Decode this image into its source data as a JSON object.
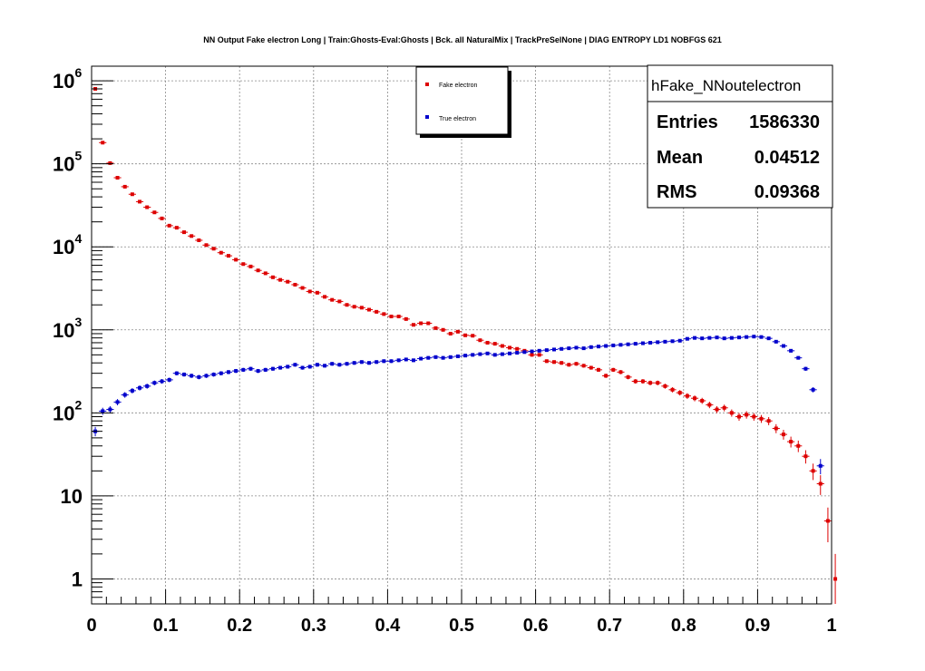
{
  "title": "NN Output Fake electron Long | Train:Ghosts-Eval:Ghosts | Bck. all NaturalMix | TrackPreSelNone | DIAG ENTROPY LD1 NOBFGS 621",
  "legend": {
    "entries": [
      "Fake electron",
      "True electron"
    ]
  },
  "stats": {
    "name": "hFake_NNoutelectron",
    "rows": [
      {
        "label": "Entries",
        "value": "1586330"
      },
      {
        "label": "Mean",
        "value": "0.04512"
      },
      {
        "label": "RMS",
        "value": "0.09368"
      }
    ]
  },
  "colors": {
    "fake": "#dd0000",
    "true": "#0000cc",
    "grid": "#888888",
    "axis": "#000000"
  },
  "chart_data": {
    "type": "scatter",
    "title": "NN Output Fake electron Long | Train:Ghosts-Eval:Ghosts | Bck. all NaturalMix | TrackPreSelNone | DIAG ENTROPY LD1 NOBFGS 621",
    "xlabel": "",
    "ylabel": "",
    "xlim": [
      0,
      1
    ],
    "ylim": [
      0.5,
      1500000
    ],
    "ylog": true,
    "grid": true,
    "legend_position": "top-center",
    "x_ticks": [
      {
        "v": 0,
        "label": "0"
      },
      {
        "v": 0.1,
        "label": "0.1"
      },
      {
        "v": 0.2,
        "label": "0.2"
      },
      {
        "v": 0.3,
        "label": "0.3"
      },
      {
        "v": 0.4,
        "label": "0.4"
      },
      {
        "v": 0.5,
        "label": "0.5"
      },
      {
        "v": 0.6,
        "label": "0.6"
      },
      {
        "v": 0.7,
        "label": "0.7"
      },
      {
        "v": 0.8,
        "label": "0.8"
      },
      {
        "v": 0.9,
        "label": "0.9"
      },
      {
        "v": 1,
        "label": "1"
      }
    ],
    "y_ticks": [
      {
        "v": 1,
        "base": "1",
        "exp": ""
      },
      {
        "v": 10,
        "base": "10",
        "exp": ""
      },
      {
        "v": 100,
        "base": "10",
        "exp": "2"
      },
      {
        "v": 1000,
        "base": "10",
        "exp": "3"
      },
      {
        "v": 10000,
        "base": "10",
        "exp": "4"
      },
      {
        "v": 100000,
        "base": "10",
        "exp": "5"
      },
      {
        "v": 1000000,
        "base": "10",
        "exp": "6"
      }
    ],
    "bin_width": 0.01,
    "series": [
      {
        "name": "Fake electron",
        "color": "#dd0000",
        "points": [
          [
            0.005,
            800000
          ],
          [
            0.015,
            180000
          ],
          [
            0.025,
            102000
          ],
          [
            0.035,
            68000
          ],
          [
            0.045,
            53000
          ],
          [
            0.055,
            43000
          ],
          [
            0.065,
            35000
          ],
          [
            0.075,
            30000
          ],
          [
            0.085,
            26000
          ],
          [
            0.095,
            22000
          ],
          [
            0.105,
            18000
          ],
          [
            0.115,
            17000
          ],
          [
            0.125,
            15000
          ],
          [
            0.135,
            13500
          ],
          [
            0.145,
            12000
          ],
          [
            0.155,
            10500
          ],
          [
            0.165,
            9500
          ],
          [
            0.175,
            8500
          ],
          [
            0.185,
            7800
          ],
          [
            0.195,
            7000
          ],
          [
            0.205,
            6200
          ],
          [
            0.215,
            5800
          ],
          [
            0.225,
            5200
          ],
          [
            0.235,
            4800
          ],
          [
            0.245,
            4300
          ],
          [
            0.255,
            4000
          ],
          [
            0.265,
            3800
          ],
          [
            0.275,
            3500
          ],
          [
            0.285,
            3200
          ],
          [
            0.295,
            2900
          ],
          [
            0.305,
            2800
          ],
          [
            0.315,
            2500
          ],
          [
            0.325,
            2300
          ],
          [
            0.335,
            2200
          ],
          [
            0.345,
            2000
          ],
          [
            0.355,
            1900
          ],
          [
            0.365,
            1850
          ],
          [
            0.375,
            1750
          ],
          [
            0.385,
            1650
          ],
          [
            0.395,
            1550
          ],
          [
            0.405,
            1450
          ],
          [
            0.415,
            1450
          ],
          [
            0.425,
            1350
          ],
          [
            0.435,
            1150
          ],
          [
            0.445,
            1200
          ],
          [
            0.455,
            1200
          ],
          [
            0.465,
            1050
          ],
          [
            0.475,
            1000
          ],
          [
            0.485,
            900
          ],
          [
            0.495,
            950
          ],
          [
            0.505,
            860
          ],
          [
            0.515,
            850
          ],
          [
            0.525,
            750
          ],
          [
            0.535,
            700
          ],
          [
            0.545,
            680
          ],
          [
            0.555,
            640
          ],
          [
            0.565,
            610
          ],
          [
            0.575,
            590
          ],
          [
            0.585,
            560
          ],
          [
            0.595,
            500
          ],
          [
            0.605,
            500
          ],
          [
            0.615,
            420
          ],
          [
            0.625,
            410
          ],
          [
            0.635,
            400
          ],
          [
            0.645,
            380
          ],
          [
            0.655,
            390
          ],
          [
            0.665,
            370
          ],
          [
            0.675,
            350
          ],
          [
            0.685,
            330
          ],
          [
            0.695,
            280
          ],
          [
            0.705,
            330
          ],
          [
            0.715,
            310
          ],
          [
            0.725,
            270
          ],
          [
            0.735,
            240
          ],
          [
            0.745,
            240
          ],
          [
            0.755,
            230
          ],
          [
            0.765,
            230
          ],
          [
            0.775,
            210
          ],
          [
            0.785,
            190
          ],
          [
            0.795,
            175
          ],
          [
            0.805,
            160
          ],
          [
            0.815,
            150
          ],
          [
            0.825,
            140
          ],
          [
            0.835,
            125
          ],
          [
            0.845,
            110
          ],
          [
            0.855,
            115
          ],
          [
            0.865,
            100
          ],
          [
            0.875,
            90
          ],
          [
            0.885,
            95
          ],
          [
            0.895,
            90
          ],
          [
            0.905,
            85
          ],
          [
            0.915,
            80
          ],
          [
            0.925,
            65
          ],
          [
            0.935,
            55
          ],
          [
            0.945,
            45
          ],
          [
            0.955,
            40
          ],
          [
            0.965,
            30
          ],
          [
            0.975,
            20
          ],
          [
            0.985,
            14
          ],
          [
            0.995,
            5
          ],
          [
            1.005,
            1
          ]
        ]
      },
      {
        "name": "True electron",
        "color": "#0000cc",
        "points": [
          [
            0.005,
            60
          ],
          [
            0.015,
            105
          ],
          [
            0.025,
            110
          ],
          [
            0.035,
            135
          ],
          [
            0.045,
            165
          ],
          [
            0.055,
            185
          ],
          [
            0.065,
            200
          ],
          [
            0.075,
            210
          ],
          [
            0.085,
            230
          ],
          [
            0.095,
            240
          ],
          [
            0.105,
            250
          ],
          [
            0.115,
            300
          ],
          [
            0.125,
            290
          ],
          [
            0.135,
            280
          ],
          [
            0.145,
            270
          ],
          [
            0.155,
            280
          ],
          [
            0.165,
            290
          ],
          [
            0.175,
            300
          ],
          [
            0.185,
            310
          ],
          [
            0.195,
            320
          ],
          [
            0.205,
            330
          ],
          [
            0.215,
            340
          ],
          [
            0.225,
            320
          ],
          [
            0.235,
            330
          ],
          [
            0.245,
            340
          ],
          [
            0.255,
            350
          ],
          [
            0.265,
            360
          ],
          [
            0.275,
            380
          ],
          [
            0.285,
            350
          ],
          [
            0.295,
            360
          ],
          [
            0.305,
            380
          ],
          [
            0.315,
            370
          ],
          [
            0.325,
            390
          ],
          [
            0.335,
            380
          ],
          [
            0.345,
            390
          ],
          [
            0.355,
            400
          ],
          [
            0.365,
            410
          ],
          [
            0.375,
            400
          ],
          [
            0.385,
            410
          ],
          [
            0.395,
            420
          ],
          [
            0.405,
            420
          ],
          [
            0.415,
            430
          ],
          [
            0.425,
            440
          ],
          [
            0.435,
            430
          ],
          [
            0.445,
            450
          ],
          [
            0.455,
            460
          ],
          [
            0.465,
            470
          ],
          [
            0.475,
            460
          ],
          [
            0.485,
            470
          ],
          [
            0.495,
            480
          ],
          [
            0.505,
            490
          ],
          [
            0.515,
            500
          ],
          [
            0.525,
            510
          ],
          [
            0.535,
            520
          ],
          [
            0.545,
            500
          ],
          [
            0.555,
            510
          ],
          [
            0.565,
            520
          ],
          [
            0.575,
            530
          ],
          [
            0.585,
            540
          ],
          [
            0.595,
            550
          ],
          [
            0.605,
            560
          ],
          [
            0.615,
            570
          ],
          [
            0.625,
            580
          ],
          [
            0.635,
            590
          ],
          [
            0.645,
            600
          ],
          [
            0.655,
            610
          ],
          [
            0.665,
            600
          ],
          [
            0.675,
            620
          ],
          [
            0.685,
            630
          ],
          [
            0.695,
            640
          ],
          [
            0.705,
            650
          ],
          [
            0.715,
            660
          ],
          [
            0.725,
            670
          ],
          [
            0.735,
            680
          ],
          [
            0.745,
            690
          ],
          [
            0.755,
            700
          ],
          [
            0.765,
            710
          ],
          [
            0.775,
            720
          ],
          [
            0.785,
            730
          ],
          [
            0.795,
            740
          ],
          [
            0.805,
            780
          ],
          [
            0.815,
            800
          ],
          [
            0.825,
            790
          ],
          [
            0.835,
            800
          ],
          [
            0.845,
            810
          ],
          [
            0.855,
            790
          ],
          [
            0.865,
            800
          ],
          [
            0.875,
            810
          ],
          [
            0.885,
            820
          ],
          [
            0.895,
            830
          ],
          [
            0.905,
            820
          ],
          [
            0.915,
            790
          ],
          [
            0.925,
            720
          ],
          [
            0.935,
            640
          ],
          [
            0.945,
            560
          ],
          [
            0.955,
            460
          ],
          [
            0.965,
            340
          ],
          [
            0.975,
            190
          ],
          [
            0.985,
            23
          ]
        ]
      }
    ]
  }
}
